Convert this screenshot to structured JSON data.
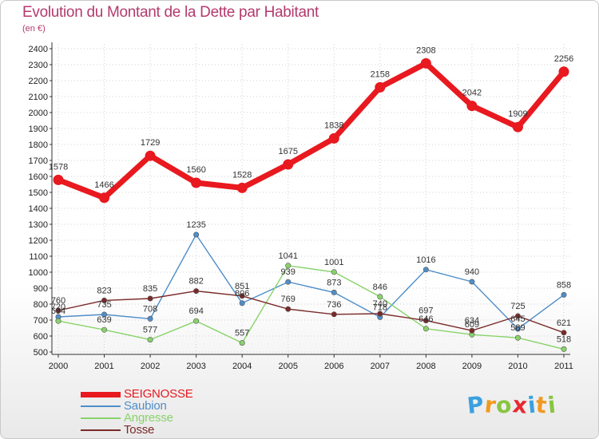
{
  "header": {
    "title": "Evolution du Montant de la Dette par Habitant",
    "subtitle": "(en €)"
  },
  "colors": {
    "title": "#b33a6e",
    "grid": "#d0d0d0"
  },
  "chart_data": {
    "type": "line",
    "title": "Evolution du Montant de la Dette par Habitant",
    "subtitle": "(en €)",
    "xlabel": "",
    "ylabel": "",
    "x": [
      "2000",
      "2001",
      "2002",
      "2003",
      "2004",
      "2005",
      "2006",
      "2007",
      "2008",
      "2009",
      "2010",
      "2011"
    ],
    "ylim": [
      500,
      2400
    ],
    "yticks": [
      500,
      600,
      700,
      800,
      900,
      1000,
      1100,
      1200,
      1300,
      1400,
      1500,
      1600,
      1700,
      1800,
      1900,
      2000,
      2100,
      2200,
      2300,
      2400
    ],
    "grid": true,
    "legend": "bottom-left",
    "series": [
      {
        "name": "SEIGNOSSE",
        "color": "#e8191f",
        "values": [
          1578,
          1466,
          1729,
          1560,
          1528,
          1675,
          1838,
          2158,
          2308,
          2042,
          1909,
          2256
        ],
        "labels": [
          "1578",
          "1466",
          "1729",
          "1560",
          "1528",
          "1675",
          "1838",
          "2158",
          "2308",
          "2042",
          "1909",
          "2256"
        ]
      },
      {
        "name": "Saubion",
        "color": "#4f8ec9",
        "values": [
          720,
          735,
          708,
          1235,
          806,
          939,
          873,
          718,
          1016,
          940,
          645,
          858
        ],
        "labels": [
          "720",
          "735",
          "708",
          "1235",
          "806",
          "939",
          "873",
          "718",
          "1016",
          "940",
          "645",
          "858"
        ]
      },
      {
        "name": "Angresse",
        "color": "#88d36a",
        "values": [
          694,
          639,
          577,
          694,
          557,
          1041,
          1001,
          846,
          646,
          609,
          589,
          518
        ],
        "labels": [
          "694",
          "639",
          "577",
          "694",
          "557",
          "1041",
          "1001",
          "846",
          "646",
          "609",
          "589",
          "518"
        ]
      },
      {
        "name": "Tosse",
        "color": "#7a2a2a",
        "values": [
          760,
          823,
          835,
          882,
          851,
          769,
          736,
          740,
          697,
          634,
          725,
          621
        ],
        "labels": [
          "760",
          "823",
          "835",
          "882",
          "851",
          "769",
          "736",
          "740",
          "697",
          "634",
          "725",
          "621"
        ]
      }
    ]
  },
  "brand": {
    "letters": [
      "P",
      "r",
      "o",
      "x",
      "i",
      "t",
      "i"
    ],
    "colors": [
      "#3aa0e0",
      "#f19a1f",
      "#88c540",
      "#e8292f",
      "#3aa0e0",
      "#f19a1f",
      "#88c540"
    ]
  }
}
